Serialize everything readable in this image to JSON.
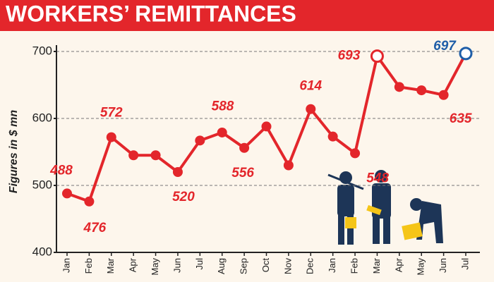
{
  "chart_data": {
    "type": "line",
    "title": "WORKERS’ REMITTANCES",
    "y_label": "Figures in $ mn",
    "categories": [
      "Jan",
      "Feb",
      "Mar",
      "Apr",
      "May",
      "Jun",
      "Jul",
      "Aug",
      "Sep",
      "Oct",
      "Nov",
      "Dec",
      "Jan",
      "Feb",
      "Mar",
      "Apr",
      "May",
      "Jun",
      "Jul"
    ],
    "series": [
      {
        "name": "Workers’ remittances",
        "color": "#e3262b",
        "values": [
          488,
          476,
          572,
          545,
          545,
          520,
          567,
          579,
          556,
          588,
          530,
          614,
          573,
          548,
          693,
          647,
          642,
          635,
          697
        ],
        "value_labels": [
          "488",
          "476",
          "572",
          null,
          null,
          "520",
          null,
          null,
          "556",
          "588",
          null,
          "614",
          null,
          "548",
          "693",
          null,
          null,
          "635",
          "697"
        ]
      }
    ],
    "last_point_color": "#1f5ea8",
    "ylim": [
      400,
      720
    ],
    "yticks": [
      400,
      500,
      600,
      700
    ],
    "grid": true
  }
}
